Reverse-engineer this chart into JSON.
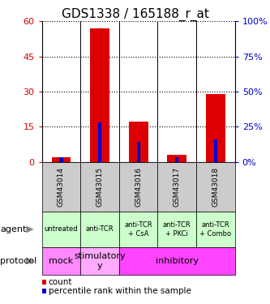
{
  "title": "GDS1338 / 165188_r_at",
  "samples": [
    "GSM43014",
    "GSM43015",
    "GSM43016",
    "GSM43017",
    "GSM43018"
  ],
  "count_values": [
    2,
    57,
    17,
    3,
    29
  ],
  "percentile_values": [
    3,
    28,
    14,
    3,
    16
  ],
  "ylim_left": [
    0,
    60
  ],
  "ylim_right": [
    0,
    100
  ],
  "yticks_left": [
    0,
    15,
    30,
    45,
    60
  ],
  "yticks_right": [
    0,
    25,
    50,
    75,
    100
  ],
  "ytick_labels_left": [
    "0",
    "15",
    "30",
    "45",
    "60"
  ],
  "ytick_labels_right": [
    "0%",
    "25%",
    "50%",
    "75%",
    "100%"
  ],
  "bar_color_count": "#dd0000",
  "bar_color_percentile": "#0000cc",
  "agent_labels": [
    "untreated",
    "anti-TCR",
    "anti-TCR\n+ CsA",
    "anti-TCR\n+ PKCi",
    "anti-TCR\n+ Combo"
  ],
  "agent_bg_color": "#ccffcc",
  "protocol_configs": [
    [
      0,
      1,
      "mock",
      "#ff88ff"
    ],
    [
      1,
      1,
      "stimulatory\ny",
      "#ffaaff"
    ],
    [
      2,
      3,
      "inhibitory",
      "#ff44ff"
    ]
  ],
  "sample_header_bg": "#cccccc",
  "title_fontsize": 11,
  "tick_fontsize": 8,
  "legend_fontsize": 7.5,
  "row_label_fontsize": 8,
  "sample_fontsize": 6.5,
  "agent_fontsize": 6,
  "protocol_fontsize": 8
}
